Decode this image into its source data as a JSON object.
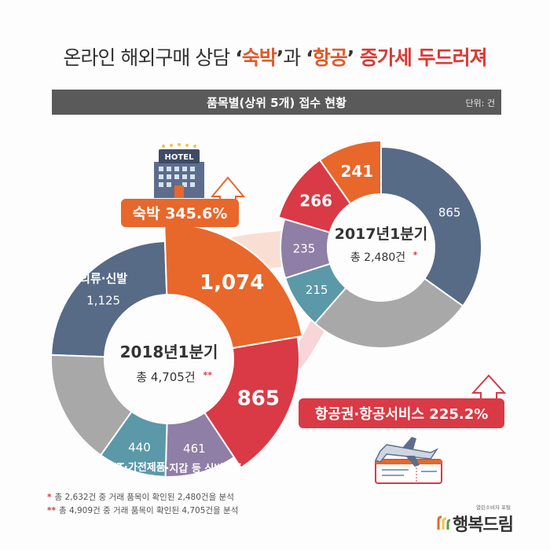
{
  "title": {
    "part1": "온라인 해외구매 상담 ",
    "q_open": "‘",
    "hl1": "숙박",
    "q_close": "’",
    "part2": "과 ",
    "hl2": "항공",
    "part3": " 증가세 두드러져"
  },
  "banner": {
    "text": "품목별(상위 5개) 접수 현황",
    "unit": "단위: 건"
  },
  "colors": {
    "clothing": "#576a86",
    "accommodation": "#e8672b",
    "flight": "#d93a45",
    "bags": "#8f7ea6",
    "it": "#5b98a8",
    "others": "#a8a8a8",
    "accent": "#d93a45"
  },
  "callouts": {
    "accommodation": "숙박 345.6%",
    "flight": "항공권·항공서비스 225.2%"
  },
  "hotel_sign": "HOTEL",
  "chart_data": [
    {
      "type": "donut",
      "center_title": "2018년1분기",
      "center_total": "총 4,705건",
      "center_mark": "**",
      "slices": [
        {
          "name": "의류·신발",
          "value": 1125,
          "label": "1,125",
          "color_key": "clothing"
        },
        {
          "name": "",
          "value": 1074,
          "label": "1,074",
          "color_key": "accommodation"
        },
        {
          "name": "",
          "value": 865,
          "label": "865",
          "color_key": "flight"
        },
        {
          "name": "가방·지갑 등 신변용품",
          "value": 461,
          "label": "461",
          "color_key": "bags"
        },
        {
          "name": "IT·가전제품",
          "value": 440,
          "label": "440",
          "color_key": "it"
        },
        {
          "name": "",
          "value": 740,
          "label": "",
          "color_key": "others"
        }
      ]
    },
    {
      "type": "donut",
      "center_title": "2017년1분기",
      "center_total": "총 2,480건",
      "center_mark": "*",
      "slices": [
        {
          "name": "",
          "value": 865,
          "label": "865",
          "color_key": "clothing"
        },
        {
          "name": "",
          "value": 658,
          "label": "",
          "color_key": "others"
        },
        {
          "name": "",
          "value": 215,
          "label": "215",
          "color_key": "it"
        },
        {
          "name": "",
          "value": 235,
          "label": "235",
          "color_key": "bags"
        },
        {
          "name": "",
          "value": 266,
          "label": "266",
          "color_key": "flight"
        },
        {
          "name": "",
          "value": 241,
          "label": "241",
          "color_key": "accommodation"
        }
      ]
    }
  ],
  "notes": [
    {
      "mark": "*",
      "text": "총 2,632건 중 거래 품목이 확인된 2,480건을 분석"
    },
    {
      "mark": "**",
      "text": "총 4,909건 중 거래 품목이 확인된 4,705건을 분석"
    }
  ],
  "logo": {
    "sub": "열린소비자 포털",
    "main": "행복드림"
  }
}
